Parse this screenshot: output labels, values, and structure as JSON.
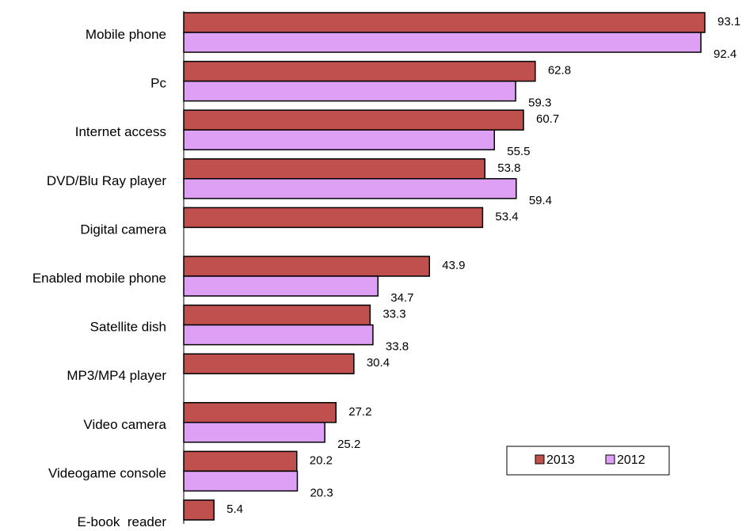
{
  "chart_data": {
    "type": "bar",
    "orientation": "horizontal",
    "categories": [
      "Mobile phone",
      "Pc",
      "Internet access",
      "DVD/Blu Ray player",
      "Digital camera",
      "Enabled mobile phone",
      "Satellite dish",
      "MP3/MP4 player",
      "Video camera",
      "Videogame console",
      "E-book  reader"
    ],
    "series": [
      {
        "name": "2013",
        "color": "#c0504d",
        "values": [
          93.1,
          62.8,
          60.7,
          53.8,
          53.4,
          43.9,
          33.3,
          30.4,
          27.2,
          20.2,
          5.4
        ],
        "labels": [
          "93.1",
          "62.8",
          "60.7",
          "53.8",
          "53.4",
          "43.9",
          "33.3",
          "30.4",
          "27.2",
          "20.2",
          "5.4"
        ]
      },
      {
        "name": "2012",
        "color": "#dda0f5",
        "values": [
          92.4,
          59.3,
          55.5,
          59.4,
          null,
          34.7,
          33.8,
          null,
          25.2,
          20.3,
          null
        ],
        "labels": [
          "92.4",
          "59.3",
          "55.5",
          "59.4",
          "",
          "34.7",
          "33.8",
          "",
          "25.2",
          "20.3",
          ""
        ]
      }
    ],
    "title": "",
    "xlabel": "",
    "ylabel": "",
    "xlim": [
      0,
      95
    ],
    "grid": false,
    "legend_position": "bottom-right"
  }
}
